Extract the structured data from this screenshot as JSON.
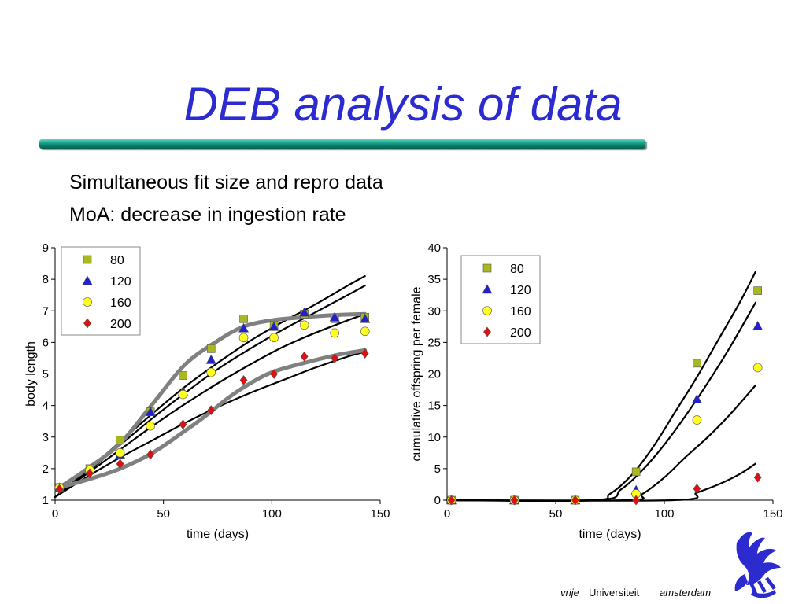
{
  "slide": {
    "title": "DEB analysis of data",
    "bullets": [
      "Simultaneous fit size and repro data",
      "MoA: decrease in ingestion rate"
    ],
    "logo": {
      "word_italic": "vrije",
      "word_regular": "Universiteit",
      "word_city": "amsterdam",
      "color": "#2b2bd0"
    }
  },
  "chart_data": [
    {
      "type": "scatter",
      "title": "",
      "xlabel": "time (days)",
      "ylabel": "body length",
      "xlim": [
        0,
        150
      ],
      "ylim": [
        1,
        9
      ],
      "xticks": [
        0,
        50,
        100,
        150
      ],
      "yticks": [
        1,
        2,
        3,
        4,
        5,
        6,
        7,
        8,
        9
      ],
      "legend": {
        "placement": "top-left"
      },
      "series": [
        {
          "name": "80",
          "marker": "square",
          "color": "#a8b820",
          "x": [
            2,
            16,
            30,
            44,
            59,
            72,
            87,
            101,
            115,
            129,
            143
          ],
          "y": [
            1.4,
            2.0,
            2.9,
            3.8,
            4.95,
            5.8,
            6.75,
            6.55,
            6.9,
            6.75,
            6.8
          ]
        },
        {
          "name": "120",
          "marker": "triangle",
          "color": "#2020d0",
          "x": [
            2,
            16,
            30,
            44,
            59,
            72,
            87,
            101,
            115,
            129,
            143
          ],
          "y": [
            1.4,
            1.95,
            2.45,
            3.8,
            4.45,
            5.45,
            6.45,
            6.5,
            6.95,
            6.8,
            6.75
          ]
        },
        {
          "name": "160",
          "marker": "circle",
          "color": "#ffff20",
          "x": [
            2,
            16,
            30,
            44,
            59,
            72,
            87,
            101,
            115,
            129,
            143
          ],
          "y": [
            1.4,
            1.95,
            2.5,
            3.35,
            4.35,
            5.05,
            6.15,
            6.15,
            6.55,
            6.3,
            6.35
          ]
        },
        {
          "name": "200",
          "marker": "diamond",
          "color": "#e01010",
          "x": [
            2,
            16,
            30,
            44,
            59,
            72,
            87,
            101,
            115,
            129,
            143
          ],
          "y": [
            1.35,
            1.85,
            2.15,
            2.45,
            3.4,
            3.85,
            4.8,
            5.0,
            5.55,
            5.5,
            5.65
          ]
        }
      ],
      "fit_curves": [
        {
          "color": "#000000",
          "x": [
            0,
            15,
            30,
            45,
            60,
            75,
            90,
            105,
            120,
            135,
            143
          ],
          "y": [
            1.1,
            1.95,
            2.85,
            3.75,
            4.6,
            5.35,
            6.05,
            6.65,
            7.2,
            7.8,
            8.1
          ]
        },
        {
          "color": "#000000",
          "x": [
            0,
            15,
            30,
            45,
            60,
            75,
            90,
            105,
            120,
            135,
            143
          ],
          "y": [
            1.1,
            1.9,
            2.75,
            3.6,
            4.4,
            5.15,
            5.8,
            6.4,
            6.95,
            7.5,
            7.8
          ]
        },
        {
          "color": "#000000",
          "x": [
            0,
            15,
            30,
            45,
            60,
            75,
            90,
            105,
            120,
            135,
            143
          ],
          "y": [
            1.1,
            1.85,
            2.6,
            3.35,
            4.05,
            4.7,
            5.3,
            5.85,
            6.3,
            6.7,
            6.9
          ]
        },
        {
          "color": "#000000",
          "x": [
            0,
            15,
            30,
            45,
            60,
            75,
            90,
            105,
            120,
            135,
            143
          ],
          "y": [
            1.1,
            1.75,
            2.35,
            2.9,
            3.45,
            3.95,
            4.4,
            4.8,
            5.2,
            5.55,
            5.7
          ]
        },
        {
          "color": "#808080",
          "x": [
            2,
            15,
            30,
            45,
            60,
            75,
            87,
            100,
            115,
            130,
            143
          ],
          "y": [
            1.4,
            2.0,
            2.8,
            4.05,
            5.3,
            6.05,
            6.5,
            6.7,
            6.8,
            6.87,
            6.9
          ]
        },
        {
          "color": "#808080",
          "x": [
            2,
            15,
            30,
            45,
            60,
            70,
            80,
            90,
            100,
            115,
            130,
            143
          ],
          "y": [
            1.4,
            1.65,
            2.0,
            2.5,
            3.2,
            3.7,
            4.25,
            4.7,
            5.05,
            5.35,
            5.6,
            5.75
          ]
        }
      ]
    },
    {
      "type": "scatter",
      "title": "",
      "xlabel": "time (days)",
      "ylabel": "cumulative offspring per female",
      "xlim": [
        0,
        150
      ],
      "ylim": [
        0,
        40
      ],
      "xticks": [
        0,
        50,
        100,
        150
      ],
      "yticks": [
        0,
        5,
        10,
        15,
        20,
        25,
        30,
        35,
        40
      ],
      "legend": {
        "placement": "top-left"
      },
      "series": [
        {
          "name": "80",
          "marker": "square",
          "color": "#a8b820",
          "x": [
            2,
            31,
            59,
            87,
            115,
            143
          ],
          "y": [
            0,
            0,
            0,
            4.5,
            21.7,
            33.2
          ]
        },
        {
          "name": "120",
          "marker": "triangle",
          "color": "#2020d0",
          "x": [
            2,
            31,
            59,
            87,
            115,
            143
          ],
          "y": [
            0,
            0,
            0,
            1.6,
            16.0,
            27.6
          ]
        },
        {
          "name": "160",
          "marker": "circle",
          "color": "#ffff20",
          "x": [
            2,
            31,
            59,
            87,
            115,
            143
          ],
          "y": [
            0,
            0,
            0,
            1.0,
            12.7,
            21.0
          ]
        },
        {
          "name": "200",
          "marker": "diamond",
          "color": "#e01010",
          "x": [
            2,
            31,
            59,
            87,
            115,
            143
          ],
          "y": [
            0,
            0,
            0,
            0,
            1.8,
            3.6
          ]
        }
      ],
      "fit_curves": [
        {
          "color": "#000000",
          "x": [
            0,
            66,
            75,
            85,
            95,
            105,
            115,
            125,
            135,
            142
          ],
          "y": [
            0,
            0,
            1.0,
            4.0,
            8.5,
            14.0,
            19.5,
            25.5,
            31.5,
            36.2
          ]
        },
        {
          "color": "#000000",
          "x": [
            0,
            69,
            80,
            90,
            100,
            110,
            120,
            130,
            142
          ],
          "y": [
            0,
            0,
            1.7,
            4.8,
            8.8,
            13.5,
            18.6,
            24.1,
            31.3
          ]
        },
        {
          "color": "#000000",
          "x": [
            0,
            82,
            90,
            100,
            110,
            120,
            130,
            142
          ],
          "y": [
            0,
            0,
            1.0,
            3.6,
            6.9,
            10.0,
            13.5,
            18.2
          ]
        },
        {
          "color": "#000000",
          "x": [
            0,
            104,
            115,
            125,
            135,
            142
          ],
          "y": [
            0,
            0,
            1.2,
            2.5,
            4.2,
            5.8
          ]
        }
      ]
    }
  ]
}
